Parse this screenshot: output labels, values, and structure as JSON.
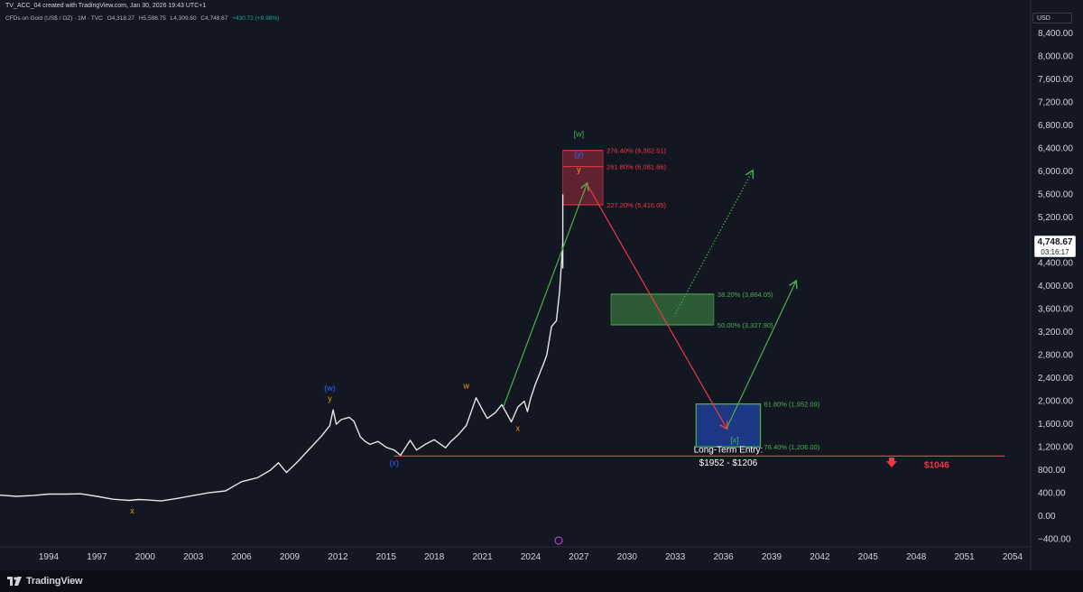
{
  "header": {
    "created_line": "TV_ACC_04 created with TradingView.com, Jan 30, 2026 19:43 UTC+1",
    "symbol": "CFDs on Gold (US$ / OZ) · 1M · TVC",
    "open": "O4,318.27",
    "high": "H5,598.75",
    "low": "L4,309.60",
    "close": "C4,748.67",
    "change": "+430.72 (+9.98%)"
  },
  "price_axis": {
    "currency": "USD",
    "current_price": "4,748.67",
    "countdown": "03:16:17"
  },
  "footer": {
    "brand": "TradingView"
  },
  "colors": {
    "background": "#131722",
    "price_line": "#e6e6e6",
    "red": "#f23645",
    "green": "#4caf50",
    "blue_label": "#2962ff",
    "orange_label": "#ff9800"
  },
  "chart_data": {
    "type": "line",
    "series": [
      {
        "values": [
          [
            1990.0,
            380
          ],
          [
            1991.0,
            365
          ],
          [
            1992.0,
            345
          ],
          [
            1993.0,
            360
          ],
          [
            1994.0,
            385
          ],
          [
            1995.0,
            385
          ],
          [
            1996.0,
            390
          ],
          [
            1997.0,
            345
          ],
          [
            1998.0,
            295
          ],
          [
            1999.0,
            275
          ],
          [
            1999.6,
            290
          ],
          [
            2000.0,
            285
          ],
          [
            2001.0,
            265
          ],
          [
            2002.0,
            310
          ],
          [
            2003.0,
            360
          ],
          [
            2004.0,
            410
          ],
          [
            2005.0,
            440
          ],
          [
            2006.0,
            600
          ],
          [
            2007.0,
            670
          ],
          [
            2007.8,
            800
          ],
          [
            2008.3,
            930
          ],
          [
            2008.8,
            760
          ],
          [
            2009.5,
            950
          ],
          [
            2010.0,
            1100
          ],
          [
            2010.5,
            1250
          ],
          [
            2011.0,
            1400
          ],
          [
            2011.5,
            1580
          ],
          [
            2011.7,
            1850
          ],
          [
            2011.9,
            1600
          ],
          [
            2012.2,
            1680
          ],
          [
            2012.7,
            1720
          ],
          [
            2013.0,
            1650
          ],
          [
            2013.4,
            1380
          ],
          [
            2013.7,
            1300
          ],
          [
            2014.0,
            1250
          ],
          [
            2014.5,
            1300
          ],
          [
            2015.0,
            1200
          ],
          [
            2015.5,
            1150
          ],
          [
            2015.9,
            1060
          ],
          [
            2016.5,
            1320
          ],
          [
            2016.9,
            1150
          ],
          [
            2017.5,
            1260
          ],
          [
            2018.0,
            1330
          ],
          [
            2018.7,
            1190
          ],
          [
            2019.0,
            1290
          ],
          [
            2019.5,
            1420
          ],
          [
            2020.0,
            1580
          ],
          [
            2020.6,
            2060
          ],
          [
            2021.0,
            1850
          ],
          [
            2021.3,
            1700
          ],
          [
            2021.8,
            1800
          ],
          [
            2022.2,
            1940
          ],
          [
            2022.8,
            1640
          ],
          [
            2023.2,
            1900
          ],
          [
            2023.6,
            2000
          ],
          [
            2023.8,
            1820
          ],
          [
            2024.0,
            2050
          ],
          [
            2024.3,
            2300
          ],
          [
            2024.8,
            2650
          ],
          [
            2025.0,
            2800
          ],
          [
            2025.3,
            3300
          ],
          [
            2025.6,
            3400
          ],
          [
            2025.8,
            3900
          ],
          [
            2026.0,
            4748.67
          ]
        ],
        "high_wick": [
          2026.0,
          4309.6,
          5598.75
        ]
      }
    ],
    "x_ticks": [
      "1994",
      "1997",
      "2000",
      "2003",
      "2006",
      "2009",
      "2012",
      "2015",
      "2018",
      "2021",
      "2024",
      "2027",
      "2030",
      "2033",
      "2036",
      "2039",
      "2042",
      "2045",
      "2048",
      "2051",
      "2054"
    ],
    "y_ticks": [
      "8,400.00",
      "8,000.00",
      "7,600.00",
      "7,200.00",
      "6,800.00",
      "6,400.00",
      "6,000.00",
      "5,600.00",
      "5,200.00",
      "4,800.00",
      "4,400.00",
      "4,000.00",
      "3,600.00",
      "3,200.00",
      "2,800.00",
      "2,400.00",
      "2,000.00",
      "1,600.00",
      "1,200.00",
      "800.00",
      "400.00",
      "0.00",
      "−400.00"
    ],
    "ylim": [
      -400,
      8400
    ],
    "fib_levels": [
      {
        "label": "276.40% (6,362.51)",
        "value": 6362.51,
        "color": "#f23645"
      },
      {
        "label": "261.80% (6,081.66)",
        "value": 6081.66,
        "color": "#f23645"
      },
      {
        "label": "227.20% (5,416.05)",
        "value": 5416.05,
        "color": "#f23645"
      },
      {
        "label": "38.20% (3,864.05)",
        "value": 3864.05,
        "color": "#4caf50"
      },
      {
        "label": "50.00% (3,327.90)",
        "value": 3327.9,
        "color": "#4caf50"
      },
      {
        "label": "61.80% (1,952.09)",
        "value": 1952.09,
        "color": "#4caf50"
      },
      {
        "label": "76.40% (1,206.00)",
        "value": 1206.0,
        "color": "#4caf50"
      }
    ],
    "support_line": {
      "value": 1046,
      "from": 2015.5,
      "to": 2053.5,
      "label": "$1046",
      "color": "#f23645"
    },
    "zones": [
      {
        "name": "red-target-zone",
        "x0": 2026.0,
        "x1": 2028.5,
        "y0": 5416.05,
        "y1": 6362.51,
        "fill": "rgba(242,54,69,0.35)"
      },
      {
        "name": "green-zone",
        "x0": 2029.0,
        "x1": 2035.4,
        "y0": 3327.9,
        "y1": 3864.05,
        "fill": "rgba(76,175,80,0.45)"
      },
      {
        "name": "entry-zone",
        "x0": 2034.3,
        "x1": 2038.3,
        "y0": 1206.0,
        "y1": 1952.09,
        "fill": "rgba(41,98,255,0.45)"
      }
    ],
    "wave_labels": [
      {
        "text": "[w]",
        "x": 2027.0,
        "y": 6600,
        "color": "#4caf50"
      },
      {
        "text": "(y)",
        "x": 2027.0,
        "y": 6250,
        "color": "#2962ff"
      },
      {
        "text": "y",
        "x": 2027.0,
        "y": 5980,
        "color": "#ff9800"
      },
      {
        "text": "(w)",
        "x": 2011.5,
        "y": 2180,
        "color": "#2962ff"
      },
      {
        "text": "y",
        "x": 2011.5,
        "y": 2000,
        "color": "#ff9800"
      },
      {
        "text": "w",
        "x": 2020.0,
        "y": 2220,
        "color": "#ff9800"
      },
      {
        "text": "x",
        "x": 2023.2,
        "y": 1480,
        "color": "#ff9800"
      },
      {
        "text": "(x)",
        "x": 2015.5,
        "y": 880,
        "color": "#2962ff"
      },
      {
        "text": "x",
        "x": 1999.2,
        "y": 50,
        "color": "#ff9800"
      },
      {
        "text": "[x]",
        "x": 2036.7,
        "y": 1280,
        "color": "#4caf50"
      }
    ],
    "projections": [
      {
        "name": "green-up-arrow",
        "points": [
          [
            2022.3,
            1900
          ],
          [
            2027.5,
            5780
          ]
        ],
        "color": "#4caf50",
        "dashed": false
      },
      {
        "name": "red-down-arrow",
        "points": [
          [
            2027.5,
            5780
          ],
          [
            2036.2,
            1530
          ]
        ],
        "color": "#f23645",
        "dashed": false
      },
      {
        "name": "green-final-arrow",
        "points": [
          [
            2036.2,
            1530
          ],
          [
            2040.5,
            4080
          ]
        ],
        "color": "#4caf50",
        "dashed": false
      },
      {
        "name": "green-dotted-arrow",
        "points": [
          [
            2033.0,
            3520
          ],
          [
            2037.8,
            6000
          ]
        ],
        "color": "#4caf50",
        "dashed": true
      }
    ],
    "annotations": [
      {
        "text": "Long-Term Entry:",
        "x": 2036.3,
        "y": 1110
      },
      {
        "text": "$1952 - $1206",
        "x": 2036.3,
        "y": 880
      }
    ]
  }
}
